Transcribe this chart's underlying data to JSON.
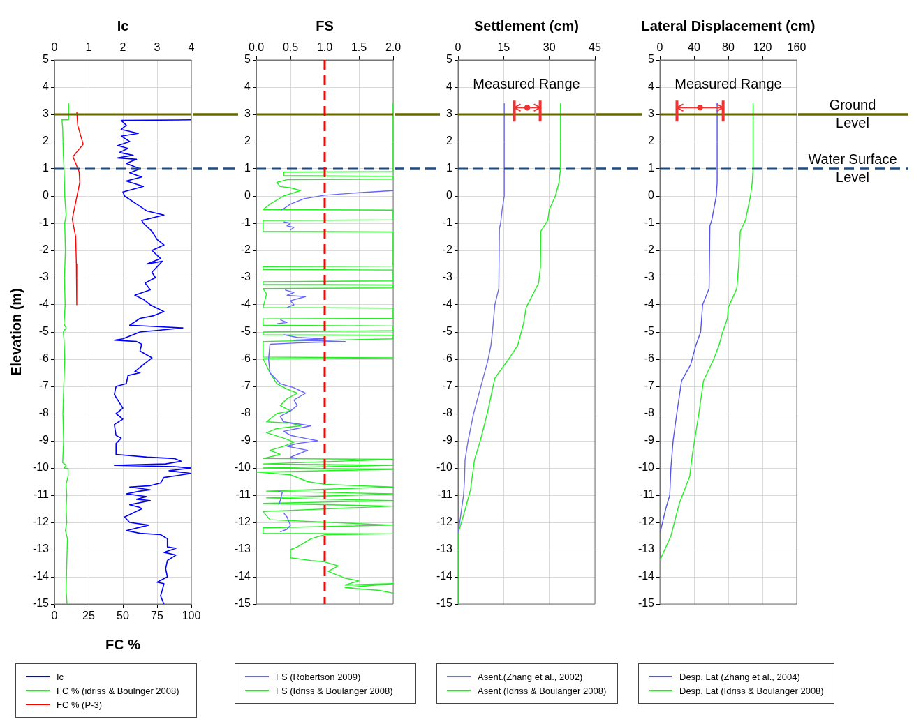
{
  "chart_data": [
    {
      "type": "line",
      "x2label": "Ic",
      "xlabel": "FC %",
      "ylabel": "Elevation (m)",
      "xlim": [
        0,
        100
      ],
      "xticks": [
        0,
        25,
        50,
        75,
        100
      ],
      "x2lim": [
        0,
        4
      ],
      "x2ticks": [
        0,
        1,
        2,
        3,
        4
      ],
      "ylim": [
        -15,
        5
      ],
      "yticks": [
        -15,
        -14,
        -13,
        -12,
        -11,
        -10,
        -9,
        -8,
        -7,
        -6,
        -5,
        -4,
        -3,
        -2,
        -1,
        0,
        1,
        2,
        3,
        4,
        5
      ],
      "grid": true,
      "legend": "bottom",
      "marker": "none",
      "ref_lines": [
        {
          "axis": "y",
          "value": 3,
          "color": "#666600"
        },
        {
          "axis": "y",
          "value": 1,
          "color": "#1f497d",
          "line_style": "dashed"
        }
      ],
      "series": [
        {
          "name": "Ic",
          "color": "#0000ff",
          "axis": "x2",
          "x": [
            4.0,
            1.95,
            2.1,
            1.95,
            2.45,
            1.95,
            2.2,
            1.85,
            2.15,
            1.9,
            2.3,
            1.85,
            2.4,
            2.1,
            2.5,
            2.2,
            2.55,
            2.1,
            2.6,
            2.0,
            2.05,
            2.4,
            2.7,
            3.2,
            2.55,
            2.6,
            2.85,
            3.0,
            3.2,
            2.85,
            3.1,
            2.7,
            3.15,
            2.85,
            2.95,
            2.65,
            2.8,
            2.35,
            2.6,
            2.8,
            3.2,
            2.9,
            2.5,
            2.2,
            3.0,
            3.75,
            2.5,
            2.0,
            1.75,
            2.4,
            2.55,
            2.5,
            2.85,
            2.5,
            2.35,
            2.5,
            2.15,
            2.1,
            1.8,
            1.75,
            1.9,
            2.0,
            1.8,
            2.0,
            1.75,
            1.8,
            1.95,
            1.8,
            1.8,
            2.7,
            3.5,
            3.7,
            3.25,
            1.75,
            3.5,
            4.0,
            3.35,
            4.0,
            3.2,
            3.1,
            2.8,
            2.2,
            2.8,
            2.5,
            2.1,
            2.7,
            2.4,
            2.8,
            2.2,
            2.5,
            2.55,
            2.05,
            2.2,
            2.75,
            2.1,
            2.5,
            3.1,
            3.3,
            3.3,
            3.55,
            3.2,
            3.55,
            3.3,
            3.25,
            3.3,
            3.0,
            3.2,
            3.15,
            3.1,
            3.2
          ],
          "values": [
            2.8,
            2.78,
            2.6,
            2.45,
            2.3,
            2.2,
            2.0,
            1.85,
            1.75,
            1.6,
            1.5,
            1.4,
            1.35,
            1.2,
            1.0,
            0.85,
            0.7,
            0.55,
            0.35,
            0.15,
            0.0,
            -0.3,
            -0.55,
            -0.7,
            -0.9,
            -1.0,
            -1.3,
            -1.6,
            -1.8,
            -2.0,
            -2.3,
            -2.5,
            -2.4,
            -2.8,
            -3.0,
            -3.2,
            -3.45,
            -3.65,
            -3.8,
            -4.0,
            -4.25,
            -4.4,
            -4.5,
            -4.75,
            -4.8,
            -4.85,
            -5.0,
            -5.25,
            -5.3,
            -5.35,
            -5.45,
            -5.7,
            -5.95,
            -6.3,
            -6.45,
            -6.5,
            -6.6,
            -6.9,
            -7.0,
            -7.3,
            -7.6,
            -7.8,
            -8.0,
            -8.2,
            -8.4,
            -8.8,
            -8.9,
            -9.1,
            -9.5,
            -9.6,
            -9.65,
            -9.75,
            -9.85,
            -9.9,
            -9.95,
            -10.0,
            -10.1,
            -10.2,
            -10.35,
            -10.55,
            -10.65,
            -10.7,
            -10.8,
            -10.85,
            -10.95,
            -11.05,
            -11.15,
            -11.2,
            -11.35,
            -11.45,
            -11.5,
            -11.8,
            -12.0,
            -12.1,
            -12.3,
            -12.4,
            -12.45,
            -12.6,
            -12.9,
            -12.95,
            -13.1,
            -13.2,
            -13.4,
            -13.7,
            -14.0,
            -14.2,
            -14.25,
            -14.5,
            -14.7,
            -15.0
          ]
        },
        {
          "name": "FC % (idriss & Boulnger 2008)",
          "color": "#22ee22",
          "x": [
            10.3,
            10.3,
            5.5,
            6,
            6.5,
            7,
            7.5,
            8.5,
            7.5,
            8,
            7.3,
            7.8,
            7,
            8.5,
            6.5,
            7,
            7.5,
            6.8,
            6.2,
            6.7,
            6,
            8.5,
            7,
            10,
            10,
            8.5,
            9,
            8.5,
            9,
            8,
            9.5,
            9,
            8.5,
            9.2
          ],
          "values": [
            3.4,
            2.8,
            2.8,
            2.5,
            1.5,
            1.0,
            0.0,
            -0.7,
            -1.0,
            -2.0,
            -3.0,
            -4.0,
            -4.7,
            -4.85,
            -5.0,
            -5.3,
            -6.0,
            -7.0,
            -8.0,
            -9.0,
            -9.8,
            -9.9,
            -10.0,
            -10.02,
            -10.3,
            -10.6,
            -11.0,
            -11.5,
            -12.0,
            -12.3,
            -12.6,
            -13.5,
            -14.5,
            -15.0
          ]
        },
        {
          "name": "FC % (P-3)",
          "color": "#ff0000",
          "x": [
            16.3,
            17,
            21,
            13.5,
            18,
            18.5,
            13,
            15.5,
            16,
            16.3
          ],
          "values": [
            3.1,
            2.6,
            1.9,
            1.45,
            0.9,
            0.5,
            -0.85,
            -1.5,
            -2.5,
            -4.0
          ]
        }
      ]
    },
    {
      "type": "line",
      "xlabel": "FS",
      "xlim": [
        0,
        2
      ],
      "xticks": [
        {
          "value": 0,
          "label": "0.0"
        },
        {
          "value": 0.5,
          "label": "0.5"
        },
        {
          "value": 1,
          "label": "1.0"
        },
        {
          "value": 1.5,
          "label": "1.5"
        },
        {
          "value": 2,
          "label": "2.0"
        }
      ],
      "ylim": [
        -15,
        5
      ],
      "yticks": [
        -15,
        -14,
        -13,
        -12,
        -11,
        -10,
        -9,
        -8,
        -7,
        -6,
        -5,
        -4,
        -3,
        -2,
        -1,
        0,
        1,
        2,
        3,
        4,
        5
      ],
      "grid": true,
      "legend": "bottom",
      "marker": "none",
      "ref_lines": [
        {
          "axis": "y",
          "value": 3,
          "color": "#666600"
        },
        {
          "axis": "y",
          "value": 1,
          "color": "#1f497d",
          "line_style": "dashed"
        },
        {
          "axis": "x",
          "value": 1,
          "color": "#ff0000",
          "line_style": "dashed"
        }
      ],
      "series": [
        {
          "name": "FS (Robertson 2009)",
          "color": "#6666ff",
          "x": [
            2.0,
            1.5,
            1.0,
            0.7,
            0.5,
            0.37,
            null,
            0.4,
            0.5,
            0.45,
            0.55,
            0.5,
            null,
            0.42,
            0.55,
            0.45,
            0.72,
            0.5,
            0.55,
            0.45,
            null,
            0.35,
            0.45,
            0.3,
            null,
            0.4,
            0.6,
            1.0,
            0.55,
            1.3,
            0.6,
            0.2,
            0.18,
            0.2,
            0.35,
            0.55,
            0.72,
            0.55,
            0.6,
            0.5,
            0.35,
            0.4,
            0.8,
            0.4,
            0.5,
            0.7,
            0.9,
            0.6,
            0.45,
            0.75,
            0.6,
            0.5,
            0.6,
            null,
            0.33,
            0.38,
            0.35,
            0.33,
            null,
            0.4,
            0.45,
            0.5,
            0.45,
            0.35
          ],
          "values": [
            0.2,
            0.12,
            0.03,
            -0.1,
            -0.3,
            -0.52,
            null,
            -0.95,
            -1.0,
            -1.1,
            -1.15,
            -1.25,
            null,
            -3.45,
            -3.55,
            -3.65,
            -3.7,
            -3.85,
            -4.0,
            -4.1,
            null,
            -4.55,
            -4.65,
            -4.7,
            null,
            -5.1,
            -5.2,
            -5.25,
            -5.3,
            -5.35,
            -5.4,
            -5.45,
            -6.0,
            -6.5,
            -6.9,
            -7.05,
            -7.25,
            -7.5,
            -7.7,
            -7.9,
            -8.1,
            -8.3,
            -8.45,
            -8.65,
            -8.8,
            -8.9,
            -9.0,
            -9.1,
            -9.2,
            -9.35,
            -9.5,
            -9.6,
            -9.65,
            null,
            -10.85,
            -10.9,
            -11.2,
            -11.35,
            null,
            -11.65,
            -11.8,
            -12.1,
            -12.25,
            -12.35
          ]
        },
        {
          "name": "FS (Idriss & Boulanger 2008)",
          "color": "#22ee22",
          "x": [
            2.0,
            2.0,
            0.4,
            0.4,
            2.0,
            2.0,
            0.45,
            0.3,
            0.35,
            0.5,
            0.65,
            0.4,
            0.2,
            0.1,
            2.0,
            2.0,
            0.1,
            0.1,
            2.0,
            2.0,
            0.1,
            0.1,
            2.0,
            2.0,
            0.1,
            0.1,
            2.0,
            2.0,
            0.1,
            0.15,
            0.1,
            2.0,
            2.0,
            0.1,
            0.1,
            2.0,
            2.0,
            0.1,
            0.1,
            2.0,
            2.0,
            0.1,
            0.1,
            2.0,
            0.1,
            0.2,
            0.3,
            0.45,
            0.6,
            0.45,
            0.35,
            0.5,
            0.3,
            0.15,
            0.5,
            0.65,
            0.3,
            0.15,
            0.4,
            0.55,
            0.4,
            0.2,
            0.35,
            0.1,
            2.0,
            0.1,
            2.0,
            0.1,
            2.0,
            0.0,
            0.5,
            0.75,
            1.0,
            2.0,
            0.15,
            2.0,
            0.15,
            2.0,
            0.1,
            2.0,
            0.1,
            0.2,
            2.0,
            0.1,
            0.1,
            2.0,
            1.0,
            0.8,
            0.6,
            0.5,
            0.5,
            0.8,
            1.0,
            1.2,
            1.05,
            1.3,
            1.5,
            1.3,
            2.0,
            1.3,
            1.8,
            2.0
          ],
          "values": [
            3.4,
            0.9,
            0.88,
            0.75,
            0.72,
            0.62,
            0.6,
            0.5,
            0.35,
            0.3,
            0.2,
            0.0,
            -0.3,
            -0.5,
            -0.52,
            -0.88,
            -0.9,
            -1.3,
            -1.32,
            -2.58,
            -2.6,
            -2.7,
            -2.72,
            -3.12,
            -3.15,
            -3.25,
            -3.27,
            -3.38,
            -3.4,
            -3.6,
            -4.1,
            -4.12,
            -4.5,
            -4.52,
            -4.75,
            -4.78,
            -4.95,
            -5.0,
            -5.1,
            -5.12,
            -5.25,
            -5.35,
            -5.92,
            -5.95,
            -5.98,
            -6.5,
            -6.9,
            -7.1,
            -7.25,
            -7.45,
            -7.7,
            -7.9,
            -8.0,
            -8.3,
            -8.35,
            -8.45,
            -8.55,
            -8.7,
            -8.9,
            -9.05,
            -9.2,
            -9.35,
            -9.5,
            -9.65,
            -9.68,
            -9.85,
            -9.9,
            -10.0,
            -10.05,
            -10.15,
            -10.25,
            -10.5,
            -10.6,
            -10.7,
            -10.85,
            -10.95,
            -11.1,
            -11.2,
            -11.3,
            -11.4,
            -11.6,
            -11.9,
            -12.1,
            -12.2,
            -12.4,
            -12.42,
            -12.45,
            -12.6,
            -12.9,
            -13.0,
            -13.3,
            -13.4,
            -13.45,
            -13.6,
            -13.8,
            -14.05,
            -14.15,
            -14.3,
            -14.25,
            -14.4,
            -14.5,
            -14.6
          ]
        }
      ]
    },
    {
      "type": "line",
      "xlabel": "Settlement (cm)",
      "xlim": [
        0,
        45
      ],
      "xticks": [
        0,
        15,
        30,
        45
      ],
      "ylim": [
        -15,
        5
      ],
      "yticks": [
        -15,
        -14,
        -13,
        -12,
        -11,
        -10,
        -9,
        -8,
        -7,
        -6,
        -5,
        -4,
        -3,
        -2,
        -1,
        0,
        1,
        2,
        3,
        4,
        5
      ],
      "grid": true,
      "legend": "bottom",
      "marker": "none",
      "ref_lines": [
        {
          "axis": "y",
          "value": 3,
          "color": "#666600"
        },
        {
          "axis": "y",
          "value": 1,
          "color": "#1f497d",
          "line_style": "dashed"
        }
      ],
      "annotations": [
        "Measured Range"
      ],
      "series": [
        {
          "name": "Asent.(Zhang et al., 2002)",
          "color": "#7070e0",
          "x": [
            15.2,
            15.2,
            14.5,
            14,
            13.6,
            13.4,
            12.1,
            11.3,
            10.8,
            9.7,
            7.5,
            5.1,
            3.3,
            2.3,
            2.1,
            1.8,
            0.8,
            0
          ],
          "values": [
            3.4,
            0,
            -0.5,
            -1.0,
            -1.2,
            -3.4,
            -4.0,
            -5.0,
            -5.5,
            -6.1,
            -7.0,
            -8.0,
            -9.0,
            -9.7,
            -10.5,
            -11.0,
            -11.8,
            -12.4
          ]
        },
        {
          "name": "Asent (Idriss & Boulanger 2008)",
          "color": "#22ee22",
          "x": [
            33.7,
            33.7,
            33.2,
            32.0,
            30.0,
            29.5,
            27.2,
            27.1,
            26.5,
            22.4,
            21.5,
            20.8,
            19.6,
            16.6,
            12.1,
            9.6,
            7.3,
            5.4,
            4.1,
            2.4,
            1.1,
            0,
            0
          ],
          "values": [
            3.4,
            1.0,
            0.5,
            0.0,
            -0.5,
            -0.9,
            -1.3,
            -2.6,
            -3.2,
            -4.1,
            -4.7,
            -5.0,
            -5.5,
            -6.0,
            -6.7,
            -8.0,
            -9.0,
            -9.7,
            -10.8,
            -11.5,
            -12.0,
            -12.4,
            -15.0
          ]
        },
        {
          "type": "scatter",
          "color": "#ee3333",
          "marker": "circle",
          "x": [
            22.75
          ],
          "values": [
            3.25
          ],
          "xerrors": [
            [
              18.5,
              27
            ]
          ]
        }
      ]
    },
    {
      "type": "line",
      "xlabel": "Lateral Displacement (cm)",
      "xlim": [
        0,
        160
      ],
      "xticks": [
        0,
        40,
        80,
        120,
        160
      ],
      "ylim": [
        -15,
        5
      ],
      "yticks": [
        -15,
        -14,
        -13,
        -12,
        -11,
        -10,
        -9,
        -8,
        -7,
        -6,
        -5,
        -4,
        -3,
        -2,
        -1,
        0,
        1,
        2,
        3,
        4,
        5
      ],
      "grid": true,
      "legend": "bottom",
      "marker": "none",
      "ref_lines": [
        {
          "axis": "y",
          "value": 3,
          "color": "#666600",
          "label": "Ground Level"
        },
        {
          "axis": "y",
          "value": 1,
          "color": "#1f497d",
          "line_style": "dashed",
          "label": "Water Surface Level"
        }
      ],
      "annotations": [
        "Measured Range"
      ],
      "series": [
        {
          "name": "Desp. Lat (Zhang et al., 2004)",
          "color": "#5555ee",
          "x": [
            67,
            67,
            66,
            63,
            60.6,
            58.5,
            57.6,
            50,
            47.7,
            42,
            36,
            25.4,
            19.8,
            15.5,
            12.9,
            11.6,
            6.9,
            0.9,
            0
          ],
          "values": [
            3.4,
            0.5,
            0,
            -0.5,
            -0.9,
            -1.1,
            -3.4,
            -4.0,
            -5.0,
            -5.5,
            -6.2,
            -6.8,
            -8.0,
            -9.0,
            -10.0,
            -11.0,
            -11.5,
            -12.3,
            -12.4
          ]
        },
        {
          "name": "Desp. Lat (Idriss & Boulanger 2008)",
          "color": "#22ee22",
          "x": [
            109,
            109,
            108,
            106,
            100,
            94,
            92,
            90,
            80,
            79,
            73.5,
            69,
            63,
            51,
            45.6,
            38,
            35,
            22.8,
            12.9,
            0,
            0
          ],
          "values": [
            3.4,
            1.0,
            0.5,
            0,
            -0.9,
            -1.3,
            -2.6,
            -3.4,
            -4.1,
            -4.5,
            -5.0,
            -5.5,
            -6.0,
            -6.8,
            -8.0,
            -9.5,
            -10.3,
            -11.3,
            -12.5,
            -13.4,
            -15.0
          ]
        },
        {
          "type": "scatter",
          "color": "#ee3333",
          "marker": "circle",
          "x": [
            47
          ],
          "values": [
            3.25
          ],
          "xerrors": [
            [
              20,
              74
            ]
          ]
        }
      ]
    }
  ]
}
